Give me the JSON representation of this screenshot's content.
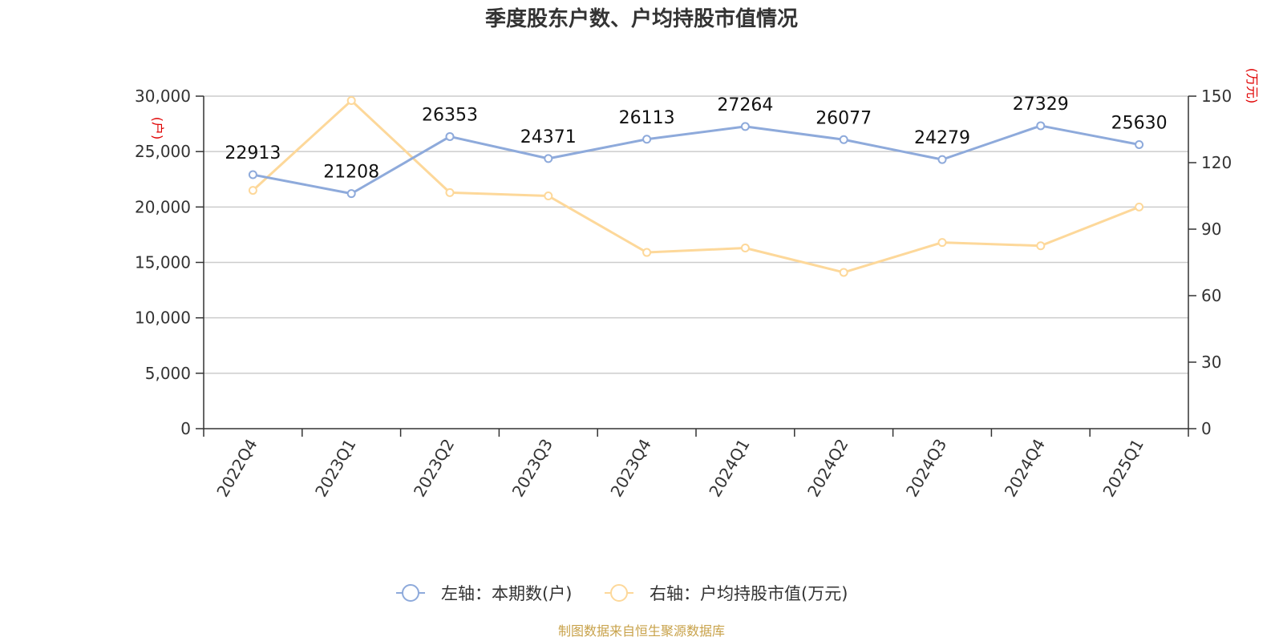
{
  "title": "季度股东户数、户均持股市值情况",
  "source": "制图数据来自恒生聚源数据库",
  "chart_data": {
    "type": "line",
    "categories": [
      "2022Q4",
      "2023Q1",
      "2023Q2",
      "2023Q3",
      "2023Q4",
      "2024Q1",
      "2024Q2",
      "2024Q3",
      "2024Q4",
      "2025Q1"
    ],
    "left_axis": {
      "unit": "户",
      "ylim": [
        0,
        30000
      ],
      "ticks": [
        "0",
        "5,000",
        "10,000",
        "15,000",
        "20,000",
        "25,000",
        "30,000"
      ]
    },
    "right_axis": {
      "unit": "万元",
      "ylim": [
        0,
        150
      ],
      "ticks": [
        "0",
        "30",
        "60",
        "90",
        "120",
        "150"
      ]
    },
    "grid": true,
    "legend_position": "bottom",
    "series": [
      {
        "name": "左轴：本期数(户)",
        "axis": "left",
        "color": "#8eaadb",
        "values": [
          22913,
          21208,
          26353,
          24371,
          26113,
          27264,
          26077,
          24279,
          27329,
          25630
        ],
        "labels": [
          "22913",
          "21208",
          "26353",
          "24371",
          "26113",
          "27264",
          "26077",
          "24279",
          "27329",
          "25630"
        ]
      },
      {
        "name": "右轴：户均持股市值(万元)",
        "axis": "right",
        "color": "#fdd89a",
        "values": [
          107.5,
          148,
          106.5,
          105,
          79.5,
          81.5,
          70.5,
          84,
          82.5,
          100
        ]
      }
    ]
  }
}
